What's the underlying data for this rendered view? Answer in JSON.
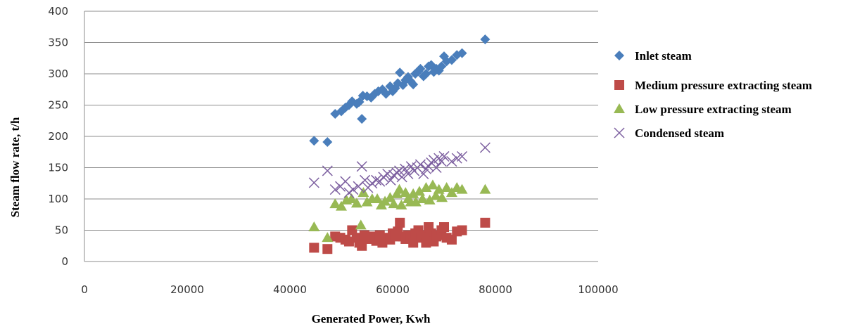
{
  "chart_data": {
    "type": "scatter",
    "title": "",
    "xlabel": "Generated Power, Kwh",
    "ylabel": "Steam flow rate, t/h",
    "xlim": [
      0,
      100000
    ],
    "ylim": [
      0,
      400
    ],
    "xticks": [
      "0",
      "20000",
      "40000",
      "60000",
      "80000",
      "100000"
    ],
    "yticks": [
      "0",
      "50",
      "100",
      "150",
      "200",
      "250",
      "300",
      "350",
      "400"
    ],
    "grid": "horizontal",
    "legend_position": "right",
    "series": [
      {
        "name": "Inlet steam",
        "marker": "diamond",
        "color": "#4a7ebb",
        "points": [
          [
            44700,
            193
          ],
          [
            47300,
            191
          ],
          [
            48800,
            236
          ],
          [
            50000,
            240
          ],
          [
            50800,
            246
          ],
          [
            51500,
            250
          ],
          [
            52100,
            256
          ],
          [
            53000,
            252
          ],
          [
            53500,
            255
          ],
          [
            54000,
            228
          ],
          [
            54200,
            265
          ],
          [
            55000,
            264
          ],
          [
            55800,
            262
          ],
          [
            56500,
            268
          ],
          [
            57200,
            272
          ],
          [
            58000,
            275
          ],
          [
            58700,
            268
          ],
          [
            59500,
            280
          ],
          [
            60000,
            272
          ],
          [
            60500,
            277
          ],
          [
            61000,
            285
          ],
          [
            61400,
            302
          ],
          [
            62000,
            282
          ],
          [
            62500,
            290
          ],
          [
            63000,
            295
          ],
          [
            63500,
            288
          ],
          [
            64000,
            283
          ],
          [
            64400,
            300
          ],
          [
            65000,
            304
          ],
          [
            65400,
            308
          ],
          [
            66000,
            296
          ],
          [
            66500,
            300
          ],
          [
            67000,
            312
          ],
          [
            67500,
            314
          ],
          [
            68000,
            303
          ],
          [
            68500,
            308
          ],
          [
            69000,
            305
          ],
          [
            69500,
            312
          ],
          [
            70000,
            328
          ],
          [
            70500,
            320
          ],
          [
            71500,
            322
          ],
          [
            72500,
            330
          ],
          [
            73500,
            333
          ],
          [
            78000,
            355
          ]
        ]
      },
      {
        "name": "Medium pressure extracting steam",
        "marker": "square",
        "color": "#be4b48",
        "points": [
          [
            44700,
            22
          ],
          [
            47300,
            20
          ],
          [
            48800,
            40
          ],
          [
            49800,
            38
          ],
          [
            50800,
            35
          ],
          [
            51500,
            32
          ],
          [
            52100,
            50
          ],
          [
            53000,
            38
          ],
          [
            53500,
            30
          ],
          [
            54000,
            25
          ],
          [
            54500,
            42
          ],
          [
            55200,
            36
          ],
          [
            56000,
            40
          ],
          [
            56800,
            33
          ],
          [
            57500,
            42
          ],
          [
            58000,
            30
          ],
          [
            58700,
            38
          ],
          [
            59500,
            35
          ],
          [
            60000,
            45
          ],
          [
            60500,
            40
          ],
          [
            61000,
            48
          ],
          [
            61400,
            62
          ],
          [
            62000,
            40
          ],
          [
            62500,
            36
          ],
          [
            63000,
            42
          ],
          [
            63500,
            38
          ],
          [
            64000,
            30
          ],
          [
            64400,
            45
          ],
          [
            65000,
            50
          ],
          [
            65500,
            38
          ],
          [
            66000,
            42
          ],
          [
            66500,
            30
          ],
          [
            67000,
            55
          ],
          [
            67500,
            45
          ],
          [
            68000,
            32
          ],
          [
            68500,
            40
          ],
          [
            69000,
            42
          ],
          [
            69500,
            50
          ],
          [
            70000,
            55
          ],
          [
            70500,
            38
          ],
          [
            71500,
            35
          ],
          [
            72500,
            48
          ],
          [
            73500,
            50
          ],
          [
            78000,
            62
          ]
        ]
      },
      {
        "name": "Low pressure extracting steam",
        "marker": "triangle",
        "color": "#98b954",
        "points": [
          [
            44700,
            55
          ],
          [
            47300,
            38
          ],
          [
            48800,
            92
          ],
          [
            50000,
            88
          ],
          [
            51000,
            98
          ],
          [
            52000,
            100
          ],
          [
            53000,
            93
          ],
          [
            53800,
            58
          ],
          [
            54300,
            110
          ],
          [
            55000,
            95
          ],
          [
            56000,
            100
          ],
          [
            57000,
            100
          ],
          [
            57800,
            90
          ],
          [
            58500,
            96
          ],
          [
            59500,
            102
          ],
          [
            60200,
            92
          ],
          [
            60800,
            108
          ],
          [
            61300,
            115
          ],
          [
            61700,
            90
          ],
          [
            62500,
            110
          ],
          [
            63000,
            100
          ],
          [
            63500,
            95
          ],
          [
            64000,
            108
          ],
          [
            64500,
            95
          ],
          [
            65200,
            112
          ],
          [
            65800,
            100
          ],
          [
            66500,
            118
          ],
          [
            67200,
            98
          ],
          [
            67800,
            122
          ],
          [
            68400,
            105
          ],
          [
            69000,
            115
          ],
          [
            69600,
            102
          ],
          [
            70500,
            118
          ],
          [
            71500,
            110
          ],
          [
            72500,
            118
          ],
          [
            73500,
            115
          ],
          [
            78000,
            115
          ]
        ]
      },
      {
        "name": "Condensed steam",
        "marker": "x",
        "color": "#7d60a0",
        "points": [
          [
            44700,
            126
          ],
          [
            47300,
            145
          ],
          [
            48800,
            115
          ],
          [
            49800,
            120
          ],
          [
            50800,
            128
          ],
          [
            51500,
            110
          ],
          [
            52300,
            115
          ],
          [
            53300,
            120
          ],
          [
            54000,
            152
          ],
          [
            54600,
            130
          ],
          [
            55200,
            118
          ],
          [
            56000,
            125
          ],
          [
            56800,
            130
          ],
          [
            57500,
            128
          ],
          [
            58200,
            135
          ],
          [
            59000,
            140
          ],
          [
            59600,
            130
          ],
          [
            60200,
            138
          ],
          [
            60800,
            142
          ],
          [
            61300,
            145
          ],
          [
            61800,
            135
          ],
          [
            62400,
            148
          ],
          [
            63000,
            140
          ],
          [
            63600,
            152
          ],
          [
            64200,
            145
          ],
          [
            64800,
            150
          ],
          [
            65400,
            155
          ],
          [
            66000,
            140
          ],
          [
            66500,
            148
          ],
          [
            67000,
            152
          ],
          [
            67500,
            158
          ],
          [
            68000,
            162
          ],
          [
            68500,
            150
          ],
          [
            69000,
            165
          ],
          [
            69500,
            160
          ],
          [
            70000,
            168
          ],
          [
            71500,
            160
          ],
          [
            72500,
            165
          ],
          [
            73500,
            168
          ],
          [
            78000,
            182
          ]
        ]
      }
    ]
  }
}
